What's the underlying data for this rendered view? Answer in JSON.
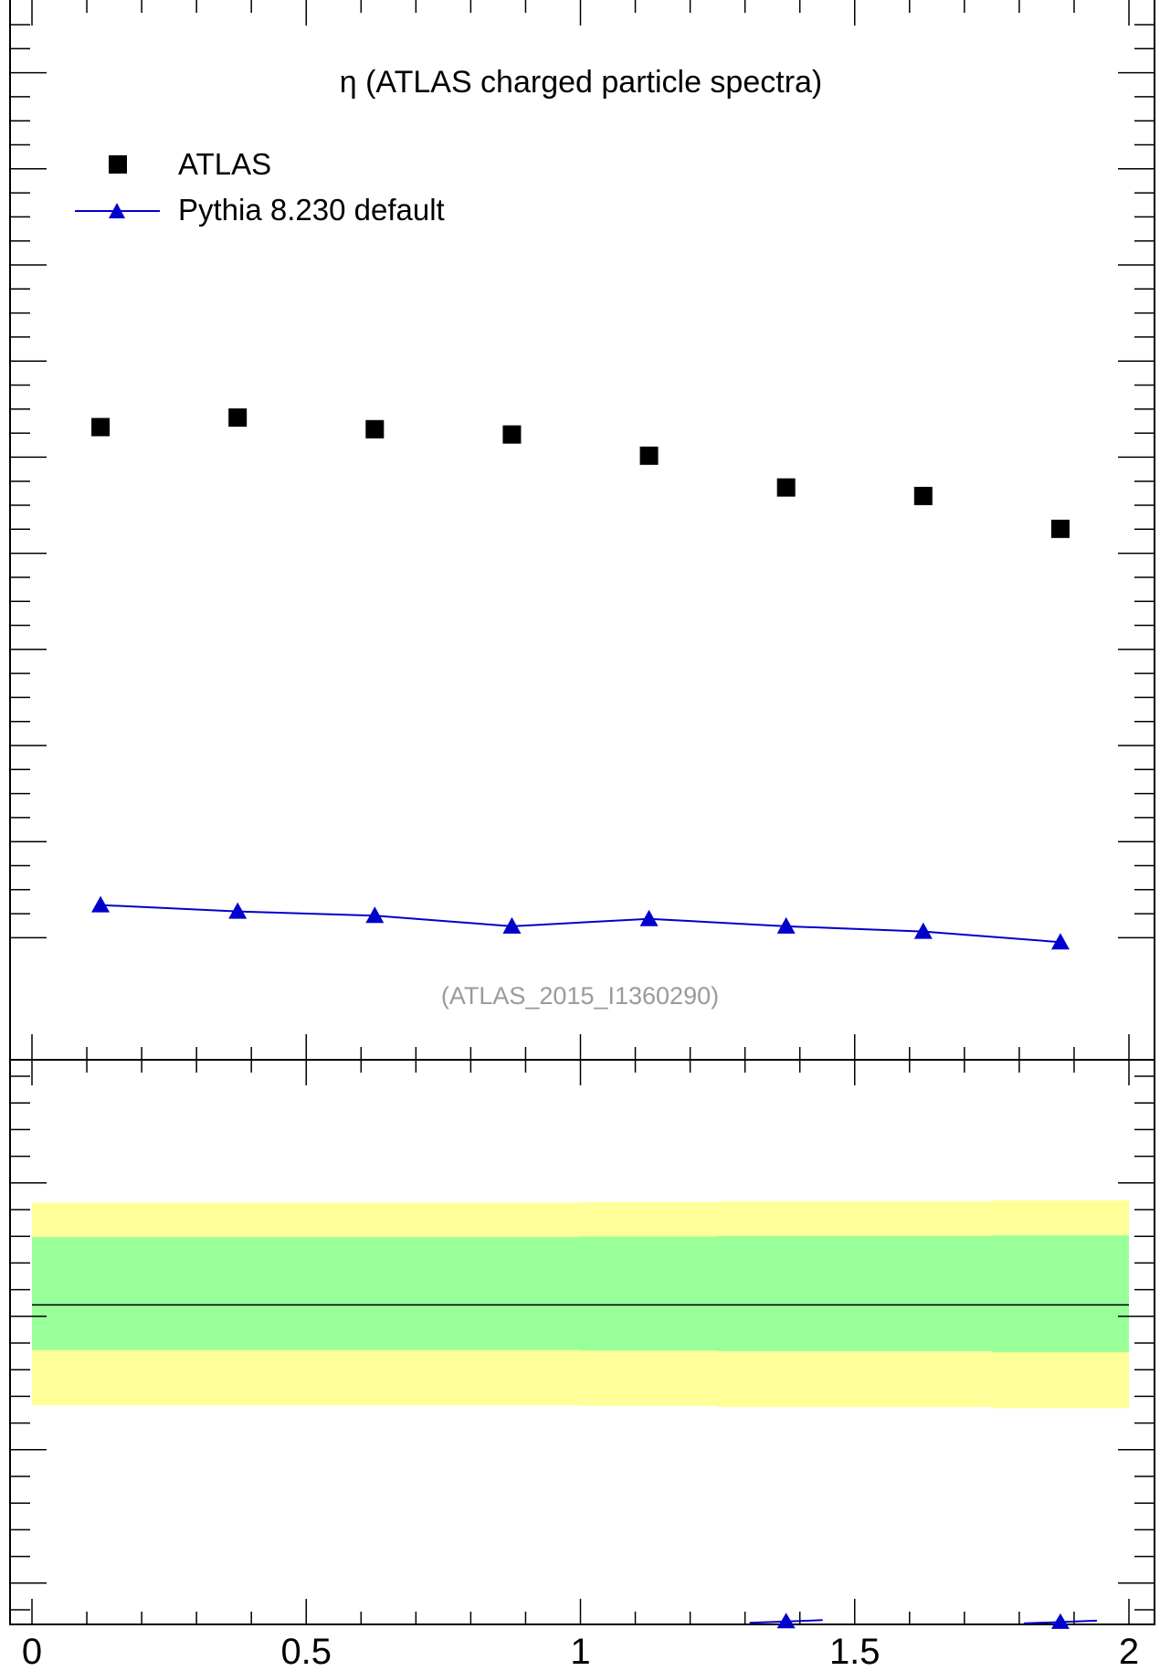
{
  "chart_data": {
    "type": "scatter",
    "title": "η (ATLAS charged particle spectra)",
    "reference_label": "(ATLAS_2015_I1360290)",
    "xlim": [
      0,
      2
    ],
    "x_ticks": [
      0,
      0.5,
      1,
      1.5,
      2
    ],
    "x_tick_labels": [
      "0",
      "0.5",
      "1",
      "1.5",
      "2"
    ],
    "main_panel": {
      "ylim": [
        0,
        1
      ],
      "y_tick_labels_visible": false,
      "series": [
        {
          "name": "ATLAS",
          "marker": "square",
          "color": "#000000",
          "line": false,
          "x": [
            0.125,
            0.375,
            0.625,
            0.875,
            1.125,
            1.375,
            1.625,
            1.875
          ],
          "values": [
            0.597,
            0.606,
            0.595,
            0.59,
            0.57,
            0.54,
            0.532,
            0.501
          ]
        },
        {
          "name": "Pythia 8.230 default",
          "marker": "triangle",
          "color": "#0000cc",
          "line": true,
          "x": [
            0.125,
            0.375,
            0.625,
            0.875,
            1.125,
            1.375,
            1.625,
            1.875
          ],
          "values": [
            0.146,
            0.14,
            0.136,
            0.126,
            0.133,
            0.126,
            0.121,
            0.111
          ]
        }
      ]
    },
    "ratio_panel": {
      "ylim": [
        0,
        1
      ],
      "reference_line": 0.566,
      "bands": [
        {
          "kind": "outer",
          "color": "#ffff99",
          "edges": [
            0,
            1,
            1.25,
            1.75,
            2
          ],
          "low": [
            0.388,
            0.387,
            0.385,
            0.383
          ],
          "high": [
            0.747,
            0.748,
            0.749,
            0.751
          ]
        },
        {
          "kind": "inner",
          "color": "#99ff99",
          "edges": [
            0,
            1,
            1.25,
            1.75,
            2
          ],
          "low": [
            0.486,
            0.485,
            0.484,
            0.482
          ],
          "high": [
            0.686,
            0.687,
            0.688,
            0.689
          ]
        }
      ],
      "model_points": {
        "color": "#0000cc",
        "x": [
          1.375,
          1.875
        ],
        "values": [
          0.006,
          0.005
        ]
      }
    }
  }
}
